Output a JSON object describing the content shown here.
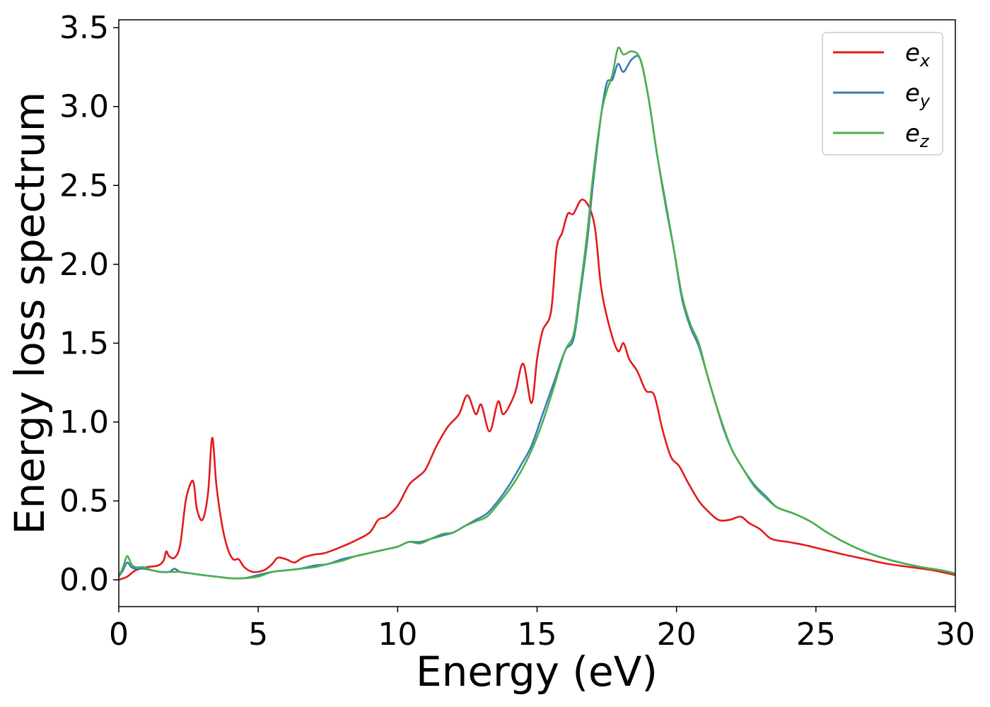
{
  "chart_data": {
    "type": "line",
    "title": "",
    "xlabel": "Energy (eV)",
    "ylabel": "Energy loss spectrum",
    "xlim": [
      0,
      30
    ],
    "ylim": [
      -0.17,
      3.55
    ],
    "xticks": [
      0,
      5,
      10,
      15,
      20,
      25,
      30
    ],
    "xtick_labels": [
      "0",
      "5",
      "10",
      "15",
      "20",
      "25",
      "30"
    ],
    "yticks": [
      0.0,
      0.5,
      1.0,
      1.5,
      2.0,
      2.5,
      3.0,
      3.5
    ],
    "ytick_labels": [
      "0.0",
      "0.5",
      "1.0",
      "1.5",
      "2.0",
      "2.5",
      "3.0",
      "3.5"
    ],
    "grid": false,
    "legend_position": "top-right",
    "series": [
      {
        "name": "e",
        "sub": "x",
        "color": "#e41a1c",
        "points": [
          [
            0,
            0.0
          ],
          [
            0.3,
            0.02
          ],
          [
            0.6,
            0.06
          ],
          [
            1.0,
            0.08
          ],
          [
            1.4,
            0.09
          ],
          [
            1.6,
            0.12
          ],
          [
            1.7,
            0.18
          ],
          [
            1.8,
            0.15
          ],
          [
            2.0,
            0.14
          ],
          [
            2.2,
            0.22
          ],
          [
            2.4,
            0.5
          ],
          [
            2.6,
            0.62
          ],
          [
            2.7,
            0.6
          ],
          [
            2.8,
            0.45
          ],
          [
            3.0,
            0.38
          ],
          [
            3.2,
            0.55
          ],
          [
            3.35,
            0.9
          ],
          [
            3.5,
            0.6
          ],
          [
            3.7,
            0.35
          ],
          [
            3.9,
            0.2
          ],
          [
            4.1,
            0.13
          ],
          [
            4.3,
            0.13
          ],
          [
            4.5,
            0.08
          ],
          [
            4.8,
            0.05
          ],
          [
            5.2,
            0.06
          ],
          [
            5.5,
            0.1
          ],
          [
            5.7,
            0.14
          ],
          [
            6.0,
            0.13
          ],
          [
            6.3,
            0.11
          ],
          [
            6.6,
            0.14
          ],
          [
            7.0,
            0.16
          ],
          [
            7.4,
            0.17
          ],
          [
            8.0,
            0.21
          ],
          [
            8.5,
            0.25
          ],
          [
            9.0,
            0.3
          ],
          [
            9.3,
            0.38
          ],
          [
            9.6,
            0.4
          ],
          [
            10.0,
            0.47
          ],
          [
            10.4,
            0.6
          ],
          [
            10.7,
            0.65
          ],
          [
            11.0,
            0.7
          ],
          [
            11.4,
            0.85
          ],
          [
            11.8,
            0.97
          ],
          [
            12.2,
            1.05
          ],
          [
            12.5,
            1.17
          ],
          [
            12.8,
            1.05
          ],
          [
            13.0,
            1.11
          ],
          [
            13.3,
            0.94
          ],
          [
            13.6,
            1.13
          ],
          [
            13.8,
            1.05
          ],
          [
            14.2,
            1.18
          ],
          [
            14.5,
            1.37
          ],
          [
            14.8,
            1.12
          ],
          [
            15.0,
            1.4
          ],
          [
            15.2,
            1.58
          ],
          [
            15.5,
            1.7
          ],
          [
            15.7,
            2.1
          ],
          [
            15.9,
            2.2
          ],
          [
            16.1,
            2.32
          ],
          [
            16.3,
            2.32
          ],
          [
            16.6,
            2.41
          ],
          [
            16.9,
            2.35
          ],
          [
            17.1,
            2.2
          ],
          [
            17.3,
            1.85
          ],
          [
            17.6,
            1.6
          ],
          [
            17.9,
            1.45
          ],
          [
            18.1,
            1.5
          ],
          [
            18.3,
            1.4
          ],
          [
            18.6,
            1.32
          ],
          [
            18.9,
            1.2
          ],
          [
            19.2,
            1.17
          ],
          [
            19.5,
            0.95
          ],
          [
            19.8,
            0.78
          ],
          [
            20.1,
            0.72
          ],
          [
            20.4,
            0.62
          ],
          [
            20.8,
            0.5
          ],
          [
            21.1,
            0.44
          ],
          [
            21.5,
            0.38
          ],
          [
            21.9,
            0.38
          ],
          [
            22.3,
            0.4
          ],
          [
            22.6,
            0.36
          ],
          [
            23.0,
            0.32
          ],
          [
            23.4,
            0.26
          ],
          [
            24.0,
            0.24
          ],
          [
            24.6,
            0.22
          ],
          [
            25.3,
            0.19
          ],
          [
            26.0,
            0.16
          ],
          [
            26.8,
            0.13
          ],
          [
            27.6,
            0.1
          ],
          [
            28.4,
            0.08
          ],
          [
            29.2,
            0.06
          ],
          [
            30,
            0.03
          ]
        ]
      },
      {
        "name": "e",
        "sub": "y",
        "color": "#377eb8",
        "points": [
          [
            0,
            0.02
          ],
          [
            0.15,
            0.06
          ],
          [
            0.3,
            0.11
          ],
          [
            0.45,
            0.08
          ],
          [
            0.6,
            0.07
          ],
          [
            0.9,
            0.07
          ],
          [
            1.2,
            0.06
          ],
          [
            1.5,
            0.05
          ],
          [
            1.8,
            0.05
          ],
          [
            2.0,
            0.07
          ],
          [
            2.2,
            0.05
          ],
          [
            2.6,
            0.04
          ],
          [
            3.0,
            0.03
          ],
          [
            3.5,
            0.02
          ],
          [
            4.0,
            0.01
          ],
          [
            4.5,
            0.01
          ],
          [
            5.0,
            0.03
          ],
          [
            5.5,
            0.05
          ],
          [
            6.0,
            0.06
          ],
          [
            6.5,
            0.07
          ],
          [
            7.0,
            0.09
          ],
          [
            7.5,
            0.1
          ],
          [
            8.0,
            0.13
          ],
          [
            8.5,
            0.15
          ],
          [
            9.0,
            0.17
          ],
          [
            9.5,
            0.19
          ],
          [
            10.0,
            0.21
          ],
          [
            10.4,
            0.24
          ],
          [
            10.8,
            0.24
          ],
          [
            11.2,
            0.26
          ],
          [
            11.6,
            0.28
          ],
          [
            12.0,
            0.3
          ],
          [
            12.4,
            0.34
          ],
          [
            12.8,
            0.38
          ],
          [
            13.2,
            0.42
          ],
          [
            13.6,
            0.5
          ],
          [
            14.0,
            0.6
          ],
          [
            14.4,
            0.72
          ],
          [
            14.8,
            0.85
          ],
          [
            15.2,
            1.05
          ],
          [
            15.6,
            1.25
          ],
          [
            16.0,
            1.45
          ],
          [
            16.3,
            1.52
          ],
          [
            16.5,
            1.75
          ],
          [
            16.8,
            2.15
          ],
          [
            17.0,
            2.5
          ],
          [
            17.3,
            2.95
          ],
          [
            17.5,
            3.15
          ],
          [
            17.7,
            3.17
          ],
          [
            17.9,
            3.27
          ],
          [
            18.1,
            3.22
          ],
          [
            18.4,
            3.3
          ],
          [
            18.7,
            3.3
          ],
          [
            19.0,
            3.05
          ],
          [
            19.3,
            2.7
          ],
          [
            19.6,
            2.4
          ],
          [
            19.9,
            2.1
          ],
          [
            20.2,
            1.78
          ],
          [
            20.5,
            1.6
          ],
          [
            20.8,
            1.48
          ],
          [
            21.1,
            1.3
          ],
          [
            21.4,
            1.12
          ],
          [
            21.7,
            0.95
          ],
          [
            22.0,
            0.82
          ],
          [
            22.4,
            0.7
          ],
          [
            22.8,
            0.6
          ],
          [
            23.2,
            0.53
          ],
          [
            23.6,
            0.46
          ],
          [
            24.2,
            0.42
          ],
          [
            24.8,
            0.37
          ],
          [
            25.4,
            0.3
          ],
          [
            26.0,
            0.24
          ],
          [
            26.6,
            0.19
          ],
          [
            27.2,
            0.15
          ],
          [
            28.0,
            0.11
          ],
          [
            28.8,
            0.08
          ],
          [
            29.5,
            0.06
          ],
          [
            30,
            0.04
          ]
        ]
      },
      {
        "name": "e",
        "sub": "z",
        "color": "#4daf4a",
        "points": [
          [
            0,
            0.02
          ],
          [
            0.15,
            0.08
          ],
          [
            0.3,
            0.15
          ],
          [
            0.45,
            0.1
          ],
          [
            0.6,
            0.08
          ],
          [
            0.9,
            0.08
          ],
          [
            1.2,
            0.06
          ],
          [
            1.5,
            0.05
          ],
          [
            1.8,
            0.05
          ],
          [
            2.0,
            0.05
          ],
          [
            2.2,
            0.05
          ],
          [
            2.6,
            0.04
          ],
          [
            3.0,
            0.03
          ],
          [
            3.5,
            0.02
          ],
          [
            4.0,
            0.01
          ],
          [
            4.5,
            0.01
          ],
          [
            5.0,
            0.02
          ],
          [
            5.5,
            0.05
          ],
          [
            6.0,
            0.06
          ],
          [
            6.5,
            0.07
          ],
          [
            7.0,
            0.08
          ],
          [
            7.5,
            0.1
          ],
          [
            8.0,
            0.12
          ],
          [
            8.5,
            0.15
          ],
          [
            9.0,
            0.17
          ],
          [
            9.5,
            0.19
          ],
          [
            10.0,
            0.21
          ],
          [
            10.4,
            0.24
          ],
          [
            10.8,
            0.23
          ],
          [
            11.2,
            0.26
          ],
          [
            11.6,
            0.29
          ],
          [
            12.0,
            0.3
          ],
          [
            12.4,
            0.34
          ],
          [
            12.8,
            0.37
          ],
          [
            13.2,
            0.4
          ],
          [
            13.6,
            0.48
          ],
          [
            14.0,
            0.57
          ],
          [
            14.4,
            0.68
          ],
          [
            14.8,
            0.82
          ],
          [
            15.2,
            1.0
          ],
          [
            15.6,
            1.22
          ],
          [
            16.0,
            1.45
          ],
          [
            16.3,
            1.55
          ],
          [
            16.5,
            1.78
          ],
          [
            16.8,
            2.2
          ],
          [
            17.0,
            2.55
          ],
          [
            17.3,
            2.95
          ],
          [
            17.5,
            3.1
          ],
          [
            17.7,
            3.2
          ],
          [
            17.9,
            3.37
          ],
          [
            18.1,
            3.33
          ],
          [
            18.4,
            3.35
          ],
          [
            18.7,
            3.3
          ],
          [
            19.0,
            3.05
          ],
          [
            19.3,
            2.7
          ],
          [
            19.6,
            2.38
          ],
          [
            19.9,
            2.1
          ],
          [
            20.2,
            1.8
          ],
          [
            20.5,
            1.62
          ],
          [
            20.8,
            1.5
          ],
          [
            21.1,
            1.3
          ],
          [
            21.4,
            1.12
          ],
          [
            21.7,
            0.96
          ],
          [
            22.0,
            0.82
          ],
          [
            22.4,
            0.7
          ],
          [
            22.8,
            0.59
          ],
          [
            23.2,
            0.52
          ],
          [
            23.6,
            0.46
          ],
          [
            24.2,
            0.42
          ],
          [
            24.8,
            0.37
          ],
          [
            25.4,
            0.3
          ],
          [
            26.0,
            0.24
          ],
          [
            26.6,
            0.19
          ],
          [
            27.2,
            0.15
          ],
          [
            28.0,
            0.11
          ],
          [
            28.8,
            0.08
          ],
          [
            29.5,
            0.06
          ],
          [
            30,
            0.04
          ]
        ]
      }
    ]
  }
}
